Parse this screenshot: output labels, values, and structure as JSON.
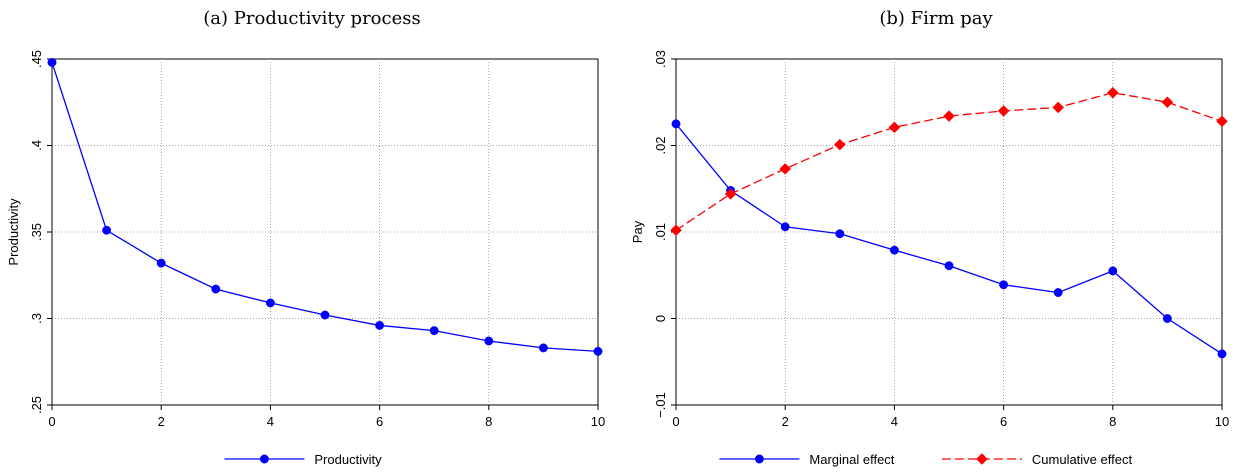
{
  "chart_data": [
    {
      "type": "line",
      "title": "(a) Productivity process",
      "xlabel": "",
      "ylabel": "Productivity",
      "xlim": [
        0,
        10
      ],
      "ylim": [
        0.25,
        0.45
      ],
      "xticks": [
        "0",
        "2",
        "4",
        "6",
        "8",
        "10"
      ],
      "yticks": [
        ".25",
        ".3",
        ".35",
        ".4",
        ".45"
      ],
      "grid": true,
      "legend_position": "bottom",
      "x": [
        0,
        1,
        2,
        3,
        4,
        5,
        6,
        7,
        8,
        9,
        10
      ],
      "series": [
        {
          "name": "Productivity",
          "color": "#0000ff",
          "marker": "circle",
          "line_style": "solid",
          "values": [
            0.448,
            0.351,
            0.332,
            0.317,
            0.309,
            0.302,
            0.296,
            0.293,
            0.287,
            0.283,
            0.281
          ]
        }
      ]
    },
    {
      "type": "line",
      "title": "(b) Firm pay",
      "xlabel": "",
      "ylabel": "Pay",
      "xlim": [
        0,
        10
      ],
      "ylim": [
        -0.01,
        0.03
      ],
      "xticks": [
        "0",
        "2",
        "4",
        "6",
        "8",
        "10"
      ],
      "yticks": [
        "−.01",
        "0",
        ".01",
        ".02",
        ".03"
      ],
      "grid": true,
      "legend_position": "bottom",
      "x": [
        0,
        1,
        2,
        3,
        4,
        5,
        6,
        7,
        8,
        9,
        10
      ],
      "series": [
        {
          "name": "Marginal effect",
          "color": "#0000ff",
          "marker": "circle",
          "line_style": "solid",
          "values": [
            0.0225,
            0.0148,
            0.0106,
            0.0098,
            0.0079,
            0.0061,
            0.0039,
            0.003,
            0.0055,
            0.0,
            -0.0041
          ]
        },
        {
          "name": "Cumulative effect",
          "color": "#ff0000",
          "marker": "diamond",
          "line_style": "dashed",
          "values": [
            0.0102,
            0.0144,
            0.0173,
            0.0201,
            0.0221,
            0.0234,
            0.024,
            0.0244,
            0.0261,
            0.025,
            0.0228
          ]
        }
      ]
    }
  ]
}
